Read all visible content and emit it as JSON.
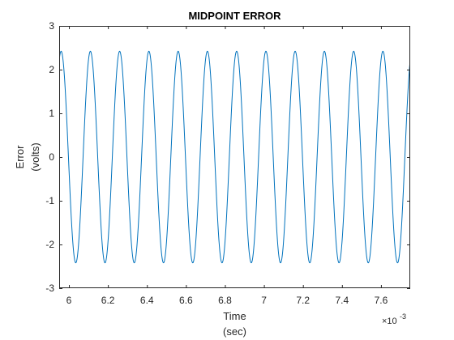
{
  "chart_data": {
    "type": "line",
    "title": "MIDPOINT ERROR",
    "ylabel": [
      "Error",
      "(volts)"
    ],
    "xlabel": [
      "Time",
      "(sec)"
    ],
    "x_exponent_base": "×10",
    "x_exponent": "-3",
    "xlim": [
      5.95,
      7.75
    ],
    "ylim": [
      -3,
      3
    ],
    "x_ticks": [
      6,
      6.2,
      6.4,
      6.6,
      6.8,
      7,
      7.2,
      7.4,
      7.6
    ],
    "x_tick_labels": [
      "6",
      "6.2",
      "6.4",
      "6.6",
      "6.8",
      "7",
      "7.2",
      "7.4",
      "7.6"
    ],
    "y_ticks": [
      -3,
      -2,
      -1,
      0,
      1,
      2,
      3
    ],
    "y_tick_labels": [
      "-3",
      "-2",
      "-1",
      "0",
      "1",
      "2",
      "3"
    ],
    "grid": false,
    "series": [
      {
        "color": "#0072bd",
        "amplitude": 2.42,
        "period": 0.15,
        "first_peak_x": 6.11,
        "x_start": 5.95,
        "x_end": 7.75
      }
    ]
  }
}
